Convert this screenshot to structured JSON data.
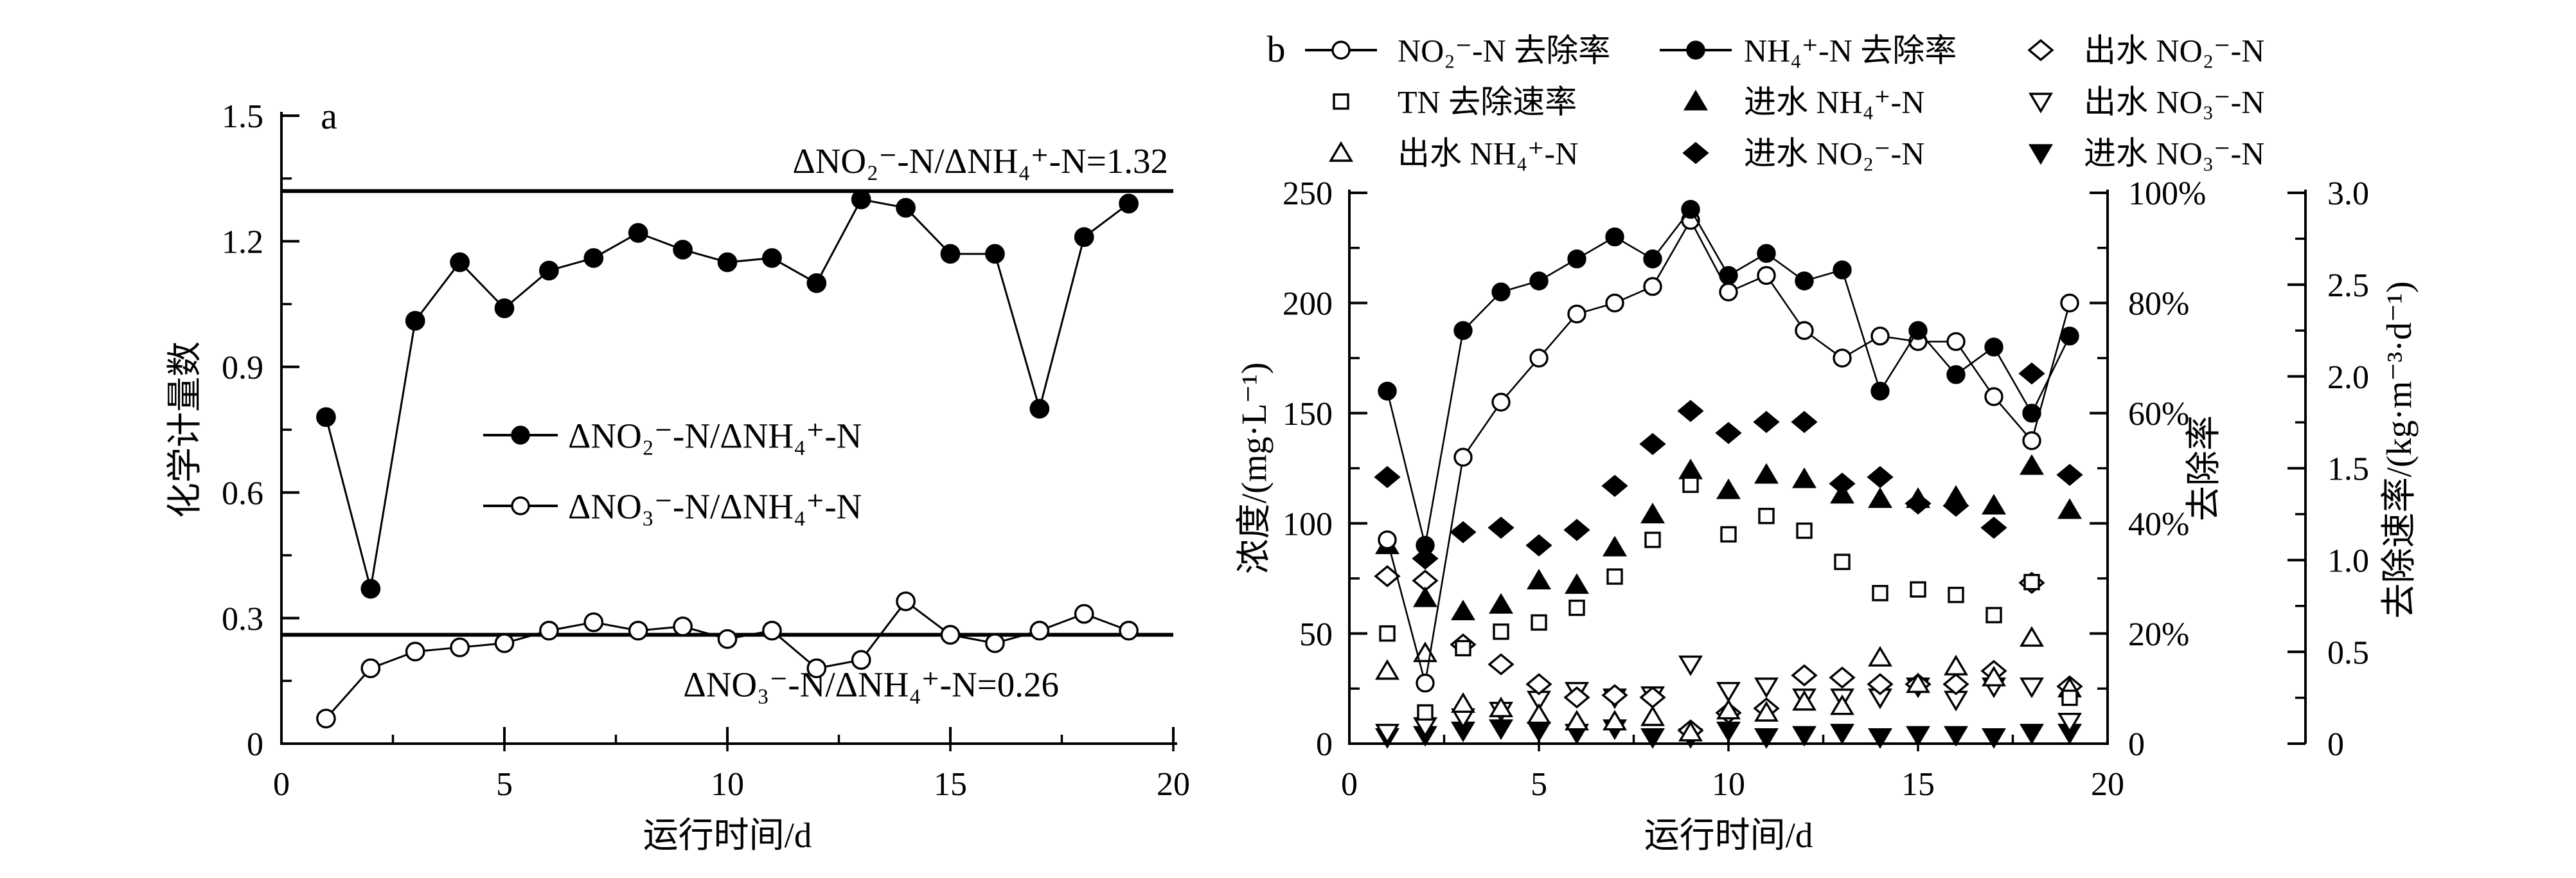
{
  "figure": {
    "background": "#ffffff",
    "foreground": "#000000",
    "panel_a_label": "a",
    "panel_b_label": "b"
  },
  "chart_data": [
    {
      "panel": "a",
      "type": "line",
      "title": "",
      "xlabel": "运行时间/d",
      "ylabel": "化学计量数",
      "xlim": [
        0,
        20
      ],
      "ylim": [
        0,
        1.5
      ],
      "x_ticks": {
        "major": [
          0,
          5,
          10,
          15,
          20
        ],
        "labels": [
          "0",
          "5",
          "10",
          "15",
          "20"
        ],
        "minor_step": 2.5
      },
      "y_ticks": {
        "major": [
          0,
          0.3,
          0.6,
          0.9,
          1.2,
          1.5
        ],
        "labels": [
          "0",
          "0.3",
          "0.6",
          "0.9",
          "1.2",
          "1.5"
        ],
        "minor_step": 0.15
      },
      "x": [
        1,
        2,
        3,
        4,
        5,
        6,
        7,
        8,
        9,
        10,
        11,
        12,
        13,
        14,
        15,
        16,
        17,
        18,
        19
      ],
      "series": [
        {
          "id": "ratio-no2-nh4",
          "label": "ΔNO₂⁻-N/ΔNH₄⁺-N",
          "marker": "circle-filled",
          "line": true,
          "values": [
            0.78,
            0.37,
            1.01,
            1.15,
            1.04,
            1.13,
            1.16,
            1.22,
            1.18,
            1.15,
            1.16,
            1.1,
            1.3,
            1.28,
            1.17,
            1.17,
            0.8,
            1.21,
            1.29
          ]
        },
        {
          "id": "ratio-no3-nh4",
          "label": "ΔNO₃⁻-N/ΔNH₄⁺-N",
          "marker": "circle-open",
          "line": true,
          "values": [
            0.06,
            0.18,
            0.22,
            0.23,
            0.24,
            0.27,
            0.29,
            0.27,
            0.28,
            0.25,
            0.27,
            0.18,
            0.2,
            0.34,
            0.26,
            0.24,
            0.27,
            0.31,
            0.27
          ]
        }
      ],
      "ref_lines": [
        {
          "y": 1.32,
          "label": "ΔNO₂⁻-N/ΔNH₄⁺-N=1.32",
          "label_side": "above"
        },
        {
          "y": 0.26,
          "label": "ΔNO₃⁻-N/ΔNH₄⁺-N=0.26",
          "label_side": "below"
        }
      ],
      "grid": false,
      "legend_position": "inside-center"
    },
    {
      "panel": "b",
      "type": "scatter-line",
      "title": "",
      "xlabel": "运行时间/d",
      "xlim": [
        0,
        20
      ],
      "x_ticks": {
        "major": [
          0,
          5,
          10,
          15,
          20
        ],
        "labels": [
          "0",
          "5",
          "10",
          "15",
          "20"
        ],
        "minor_step": 2.5
      },
      "y_left": {
        "label": "浓度/(mg·L⁻¹)",
        "lim": [
          0,
          250
        ],
        "major": [
          0,
          50,
          100,
          150,
          200,
          250
        ],
        "labels": [
          "0",
          "50",
          "100",
          "150",
          "200",
          "250"
        ],
        "minor_step": 25
      },
      "y_right_percent": {
        "label": "去除率",
        "lim": [
          0,
          100
        ],
        "major": [
          0,
          20,
          40,
          60,
          80,
          100
        ],
        "labels": [
          "0",
          "20%",
          "40%",
          "60%",
          "80%",
          "100%"
        ],
        "minor_step": 10
      },
      "y_right_rate": {
        "label": "去除速率/(kg·m⁻³·d⁻¹)",
        "lim": [
          0,
          3
        ],
        "major": [
          0,
          0.5,
          1,
          1.5,
          2,
          2.5,
          3
        ],
        "labels": [
          "0",
          "0.5",
          "1.0",
          "1.5",
          "2.0",
          "2.5",
          "3.0"
        ],
        "minor_step": 0.25
      },
      "x": [
        1,
        2,
        3,
        4,
        5,
        6,
        7,
        8,
        9,
        10,
        11,
        12,
        13,
        14,
        15,
        16,
        17,
        18,
        19
      ],
      "series": [
        {
          "id": "influent-no3",
          "label": "进水 NO₃⁻-N",
          "axis": "conc",
          "marker": "triangle-down-filled",
          "line": false,
          "values": [
            3,
            4,
            6,
            7,
            6,
            5,
            7,
            3,
            3,
            6,
            3,
            4,
            5,
            3,
            4,
            4,
            3,
            5,
            5
          ]
        },
        {
          "id": "effluent-no3",
          "label": "出水 NO₃⁻-N",
          "axis": "conc",
          "marker": "triangle-down-open",
          "line": false,
          "values": [
            5,
            8,
            12,
            15,
            20,
            24,
            21,
            22,
            36,
            24,
            26,
            21,
            21,
            21,
            26,
            20,
            26,
            26,
            10
          ]
        },
        {
          "id": "effluent-no2",
          "label": "出水 NO₂⁻-N",
          "axis": "conc",
          "marker": "diamond-open",
          "line": false,
          "values": [
            76,
            74,
            45,
            36,
            27,
            21,
            22,
            21,
            6,
            14,
            16,
            31,
            30,
            27,
            27,
            27,
            33,
            73,
            26
          ]
        },
        {
          "id": "effluent-nh4",
          "label": "出水 NH₄⁺-N",
          "axis": "conc",
          "marker": "triangle-up-open",
          "line": false,
          "values": [
            33,
            41,
            18,
            16,
            13,
            10,
            10,
            12,
            5,
            15,
            14,
            19,
            17,
            39,
            27,
            35,
            30,
            48,
            25
          ]
        },
        {
          "id": "influent-nh4",
          "label": "进水 NH₄⁺-N",
          "axis": "conc",
          "marker": "triangle-up-filled",
          "line": false,
          "values": [
            90,
            66,
            60,
            63,
            74,
            72,
            89,
            104,
            124,
            115,
            122,
            120,
            113,
            111,
            111,
            112,
            108,
            126,
            106
          ]
        },
        {
          "id": "influent-no2",
          "label": "进水 NO₂⁻-N",
          "axis": "conc",
          "marker": "diamond-filled",
          "line": false,
          "values": [
            121,
            84,
            96,
            98,
            90,
            97,
            117,
            136,
            151,
            141,
            146,
            146,
            118,
            121,
            109,
            108,
            98,
            168,
            122
          ]
        },
        {
          "id": "tn-removal-rate",
          "label": "TN 去除速率",
          "axis": "rate",
          "marker": "square-open",
          "line": false,
          "values": [
            0.6,
            0.17,
            0.52,
            0.61,
            0.66,
            0.74,
            0.91,
            1.11,
            1.41,
            1.14,
            1.24,
            1.16,
            0.99,
            0.82,
            0.84,
            0.81,
            0.7,
            0.88,
            0.25
          ]
        },
        {
          "id": "no2-removal",
          "label": "NO₂⁻-N 去除率",
          "axis": "percent",
          "marker": "circle-open",
          "line": true,
          "values": [
            37,
            11,
            52,
            62,
            70,
            78,
            80,
            83,
            95,
            82,
            85,
            75,
            70,
            74,
            73,
            73,
            63,
            55,
            80
          ]
        },
        {
          "id": "nh4-removal",
          "label": "NH₄⁺-N 去除率",
          "axis": "percent",
          "marker": "circle-filled",
          "line": true,
          "values": [
            64,
            36,
            75,
            82,
            84,
            88,
            92,
            88,
            97,
            85,
            89,
            84,
            86,
            64,
            75,
            67,
            72,
            60,
            74
          ]
        }
      ],
      "legend": [
        {
          "row": 0,
          "col": 0,
          "marker": "circle-open",
          "line": true,
          "label": "NO₂⁻-N 去除率"
        },
        {
          "row": 0,
          "col": 1,
          "marker": "circle-filled",
          "line": true,
          "label": "NH₄⁺-N 去除率"
        },
        {
          "row": 0,
          "col": 2,
          "marker": "diamond-open",
          "line": false,
          "label": "出水 NO₂⁻-N"
        },
        {
          "row": 1,
          "col": 0,
          "marker": "square-open",
          "line": false,
          "label": "TN 去除速率"
        },
        {
          "row": 1,
          "col": 1,
          "marker": "triangle-up-filled",
          "line": false,
          "label": "进水 NH₄⁺-N"
        },
        {
          "row": 1,
          "col": 2,
          "marker": "triangle-down-open",
          "line": false,
          "label": "出水 NO₃⁻-N"
        },
        {
          "row": 2,
          "col": 0,
          "marker": "triangle-up-open",
          "line": false,
          "label": "出水 NH₄⁺-N"
        },
        {
          "row": 2,
          "col": 1,
          "marker": "diamond-filled",
          "line": false,
          "label": "进水 NO₂⁻-N"
        },
        {
          "row": 2,
          "col": 2,
          "marker": "triangle-down-filled",
          "line": false,
          "label": "进水 NO₃⁻-N"
        }
      ],
      "grid": false,
      "legend_position": "top-outside"
    }
  ]
}
